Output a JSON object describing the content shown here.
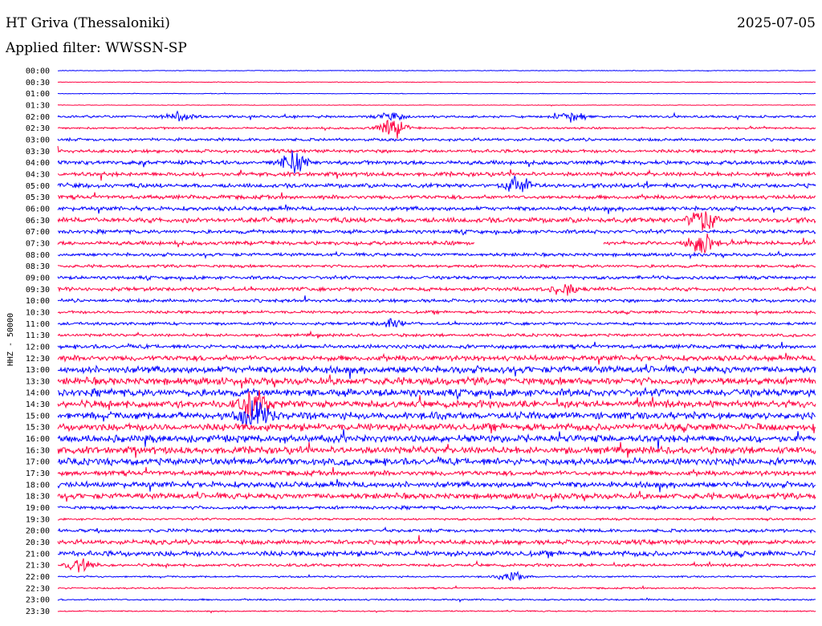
{
  "header": {
    "station": "HT Griva (Thessaloniki)",
    "date": "2025-07-05",
    "filter_label": "Applied filter: WWSSN-SP"
  },
  "chart_data": {
    "type": "line",
    "title": "HT Griva (Thessaloniki)",
    "ylabel": "HHZ - 50000",
    "xlabel": "",
    "colors": [
      "#0000ff",
      "#ff0040"
    ],
    "row_labels": [
      "00:00",
      "00:30",
      "01:00",
      "01:30",
      "02:00",
      "02:30",
      "03:00",
      "03:30",
      "04:00",
      "04:30",
      "05:00",
      "05:30",
      "06:00",
      "06:30",
      "07:00",
      "07:30",
      "08:00",
      "08:30",
      "09:00",
      "09:30",
      "10:00",
      "10:30",
      "11:00",
      "11:30",
      "12:00",
      "12:30",
      "13:00",
      "13:30",
      "14:00",
      "14:30",
      "15:00",
      "15:30",
      "16:00",
      "16:30",
      "17:00",
      "17:30",
      "18:00",
      "18:30",
      "19:00",
      "19:30",
      "20:00",
      "20:30",
      "21:00",
      "21:30",
      "22:00",
      "22:30",
      "23:00",
      "23:30"
    ],
    "noise_level": [
      0.3,
      0.3,
      0.3,
      0.3,
      1.2,
      1.0,
      1.4,
      1.6,
      2.0,
      2.0,
      2.0,
      1.9,
      2.0,
      2.4,
      1.8,
      1.9,
      1.6,
      1.4,
      1.6,
      1.8,
      1.6,
      1.4,
      1.4,
      1.4,
      1.9,
      2.6,
      3.4,
      3.5,
      3.5,
      3.4,
      3.4,
      3.5,
      3.5,
      3.4,
      3.3,
      2.4,
      2.8,
      2.8,
      1.6,
      1.0,
      1.6,
      2.2,
      2.6,
      1.4,
      0.8,
      0.8,
      0.8,
      0.6
    ],
    "events": [
      {
        "row": 4,
        "at": 0.16,
        "amp": 6
      },
      {
        "row": 4,
        "at": 0.44,
        "amp": 6
      },
      {
        "row": 4,
        "at": 0.68,
        "amp": 7
      },
      {
        "row": 5,
        "at": 0.44,
        "amp": 16
      },
      {
        "row": 8,
        "at": 0.31,
        "amp": 16
      },
      {
        "row": 10,
        "at": 0.61,
        "amp": 14
      },
      {
        "row": 13,
        "at": 0.85,
        "amp": 18
      },
      {
        "row": 15,
        "at": 0.85,
        "amp": 18
      },
      {
        "row": 19,
        "at": 0.67,
        "amp": 9
      },
      {
        "row": 22,
        "at": 0.44,
        "amp": 6
      },
      {
        "row": 29,
        "at": 0.26,
        "amp": 20
      },
      {
        "row": 30,
        "at": 0.26,
        "amp": 22
      },
      {
        "row": 43,
        "at": 0.03,
        "amp": 10
      },
      {
        "row": 44,
        "at": 0.6,
        "amp": 7
      }
    ],
    "gap": {
      "row": 15,
      "from": 0.55,
      "to": 0.72
    }
  }
}
